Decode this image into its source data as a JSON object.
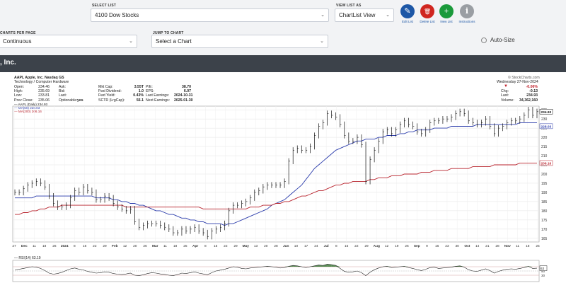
{
  "toolbar": {
    "select_list_label": "SELECT LIST",
    "select_list_value": "4100 Dow Stocks",
    "view_list_label": "VIEW LIST AS",
    "view_list_value": "ChartList View",
    "charts_per_page_label": "CHARTS PER PAGE",
    "charts_per_page_value": "Continuous",
    "jump_label": "JUMP TO CHART",
    "jump_value": "Select a Chart",
    "auto_size": "Auto-Size",
    "actions": [
      {
        "label": "Edit List",
        "icon": "pencil-icon",
        "color": "#1d57a6",
        "glyph": "✎"
      },
      {
        "label": "Delete List",
        "icon": "trash-icon",
        "color": "#d0261f",
        "glyph": "🗑"
      },
      {
        "label": "New List",
        "icon": "plus-icon",
        "color": "#1b9a3b",
        "glyph": "+"
      },
      {
        "label": "Instructions",
        "icon": "info-icon",
        "color": "#9a9ea3",
        "glyph": "i"
      }
    ]
  },
  "section_title": ", Inc.",
  "chart_header": {
    "symbol_line": "AAPL Apple, Inc. Nasdaq GS",
    "sector": "Technology / Computer Hardware",
    "watermark": "© StockCharts.com",
    "date_line": "Wednesday 27-Nov-2024",
    "left_col": [
      {
        "k": "Open:",
        "v": "234.46"
      },
      {
        "k": "High:",
        "v": "235.69"
      },
      {
        "k": "Low:",
        "v": "233.81"
      },
      {
        "k": "Prev Close:",
        "v": "235.06"
      }
    ],
    "ask_col": [
      {
        "k": "Ask:",
        "v": ""
      },
      {
        "k": "Bid:",
        "v": ""
      },
      {
        "k": "Last:",
        "v": ""
      },
      {
        "k": "Optionable:",
        "v": "yes"
      }
    ],
    "mid_col": [
      {
        "k": "Mkt Cap:",
        "v": "3.55T"
      },
      {
        "k": "Fwd Dividend:",
        "v": "1.0"
      },
      {
        "k": "Fwd Yield:",
        "v": "0.43%"
      },
      {
        "k": "SCTR (LrgCap):",
        "v": "56.1"
      }
    ],
    "pe_col": [
      {
        "k": "P/E:",
        "v": "38.70"
      },
      {
        "k": "EPS:",
        "v": "6.07"
      },
      {
        "k": "Last Earnings:",
        "v": "2024-10-31"
      },
      {
        "k": "Next Earnings:",
        "v": "2025-01-30"
      }
    ],
    "right_col": [
      {
        "k": "",
        "v": "-0.06%"
      },
      {
        "k": "Chg:",
        "v": "-0.13"
      },
      {
        "k": "Last:",
        "v": "234.93"
      },
      {
        "k": "Volume:",
        "v": "34,362,160"
      }
    ],
    "legend": [
      {
        "text": "AAPL (Daily) 234.93",
        "color": "#111111"
      },
      {
        "text": "MA(50) 228.03",
        "color": "#2a3bab"
      },
      {
        "text": "MA(200) 206.16",
        "color": "#b8232d"
      }
    ],
    "rsi_legend": "RSI(14) 63.19",
    "down_color": "#c0202a"
  },
  "chart_data": {
    "type": "line",
    "ylim": [
      163,
      237
    ],
    "yticks": [
      165,
      170,
      175,
      180,
      185,
      190,
      195,
      200,
      205,
      210,
      215,
      220,
      225,
      230,
      235
    ],
    "price_labels": [
      "234.93",
      "228.03",
      "206.16"
    ],
    "x_labels": [
      "27",
      "Dec",
      "11",
      "18",
      "26",
      "2024",
      "8",
      "16",
      "22",
      "29",
      "Feb",
      "12",
      "20",
      "26",
      "Mar",
      "11",
      "18",
      "25",
      "Apr",
      "8",
      "15",
      "22",
      "29",
      "May",
      "13",
      "20",
      "28",
      "Jun",
      "10",
      "17",
      "24",
      "Jul",
      "8",
      "15",
      "22",
      "29",
      "Aug",
      "12",
      "19",
      "26",
      "Sep",
      "9",
      "16",
      "23",
      "30",
      "Oct",
      "14",
      "21",
      "28",
      "Nov",
      "11",
      "18",
      "25"
    ],
    "series": [
      {
        "name": "AAPL (Daily) 234.93",
        "color": "#111111",
        "values": [
          190,
          190,
          192,
          194,
          195,
          196,
          195,
          193,
          188,
          184,
          182,
          182,
          183,
          187,
          191,
          190,
          193,
          191,
          190,
          186,
          186,
          188,
          187,
          184,
          182,
          181,
          180,
          181,
          174,
          171,
          172,
          173,
          173,
          173,
          172,
          171,
          170,
          168,
          168,
          170,
          169,
          170,
          171,
          169,
          168,
          166,
          169,
          170,
          171,
          173,
          180,
          183,
          183,
          184,
          185,
          187,
          190,
          191,
          193,
          194,
          194,
          194,
          194,
          196,
          207,
          213,
          214,
          213,
          213,
          215,
          221,
          226,
          228,
          233,
          232,
          231,
          227,
          221,
          218,
          218,
          220,
          216,
          196,
          208,
          213,
          218,
          223,
          224,
          222,
          224,
          227,
          229,
          227,
          226,
          223,
          222,
          224,
          228,
          229,
          229,
          230,
          230,
          231,
          233,
          234,
          233,
          229,
          228,
          227,
          228,
          230,
          226,
          222,
          225,
          226,
          228,
          229,
          229,
          230,
          232,
          235,
          232,
          234
        ]
      },
      {
        "name": "MA(50) 228.03",
        "color": "#2a3bab",
        "values": [
          187,
          187,
          187,
          187,
          187,
          188,
          188,
          188,
          188,
          188,
          188,
          188,
          188,
          188,
          188,
          188,
          188,
          188,
          188,
          187,
          187,
          187,
          187,
          186,
          186,
          185,
          185,
          184,
          184,
          183,
          183,
          182,
          181,
          180,
          180,
          179,
          178,
          178,
          177,
          176,
          176,
          175,
          175,
          174,
          174,
          173,
          173,
          173,
          173,
          172,
          173,
          173,
          174,
          175,
          176,
          177,
          178,
          179,
          180,
          181,
          183,
          184,
          185,
          186,
          188,
          190,
          192,
          194,
          197,
          200,
          203,
          205,
          207,
          209,
          211,
          213,
          214,
          215,
          216,
          217,
          218,
          218,
          219,
          219,
          219,
          220,
          220,
          221,
          221,
          221,
          222,
          222,
          223,
          223,
          224,
          224,
          224,
          224,
          225,
          225,
          225,
          225,
          226,
          226,
          226,
          226,
          226,
          226,
          227,
          227,
          227,
          227,
          227,
          227,
          227,
          227,
          227,
          227,
          228,
          228,
          228,
          228,
          228
        ]
      },
      {
        "name": "MA(200) 206.16",
        "color": "#b8232d",
        "values": [
          178,
          178,
          179,
          179,
          180,
          180,
          181,
          181,
          182,
          182,
          182,
          183,
          183,
          183,
          183,
          183,
          183,
          183,
          183,
          183,
          183,
          183,
          183,
          183,
          183,
          183,
          182,
          182,
          182,
          182,
          182,
          182,
          182,
          182,
          182,
          182,
          182,
          182,
          182,
          182,
          182,
          182,
          182,
          182,
          181,
          181,
          181,
          181,
          181,
          181,
          181,
          181,
          181,
          181,
          181,
          182,
          182,
          182,
          183,
          183,
          183,
          184,
          184,
          185,
          185,
          186,
          187,
          188,
          188,
          189,
          190,
          191,
          191,
          192,
          193,
          194,
          194,
          195,
          195,
          196,
          196,
          196,
          196,
          197,
          197,
          198,
          198,
          198,
          199,
          199,
          199,
          200,
          200,
          200,
          200,
          201,
          201,
          201,
          202,
          202,
          202,
          202,
          203,
          203,
          203,
          203,
          203,
          204,
          204,
          204,
          204,
          204,
          205,
          205,
          205,
          205,
          205,
          205,
          206,
          206,
          206,
          206,
          206
        ]
      },
      {
        "name": "RSI(14) 63.19",
        "values": [
          55,
          58,
          62,
          66,
          70,
          68,
          62,
          52,
          40,
          35,
          38,
          44,
          52,
          60,
          64,
          58,
          55,
          48,
          44,
          40,
          42,
          46,
          44,
          38,
          35,
          33,
          36,
          40,
          30,
          28,
          32,
          38,
          42,
          40,
          36,
          34,
          30,
          28,
          33,
          40,
          38,
          42,
          46,
          40,
          36,
          32,
          42,
          50,
          54,
          58,
          64,
          70,
          68,
          62,
          60,
          64,
          66,
          68,
          70,
          72,
          70,
          68,
          64,
          66,
          72,
          76,
          74,
          70,
          66,
          70,
          74,
          78,
          76,
          82,
          80,
          76,
          62,
          48,
          44,
          46,
          50,
          42,
          28,
          44,
          56,
          64,
          70,
          72,
          66,
          68,
          70,
          72,
          66,
          62,
          56,
          52,
          58,
          66,
          68,
          62,
          64,
          66,
          68,
          72,
          74,
          68,
          56,
          50,
          48,
          54,
          60,
          52,
          40,
          48,
          54,
          58,
          60,
          58,
          62,
          66,
          72,
          62,
          63
        ]
      }
    ]
  }
}
